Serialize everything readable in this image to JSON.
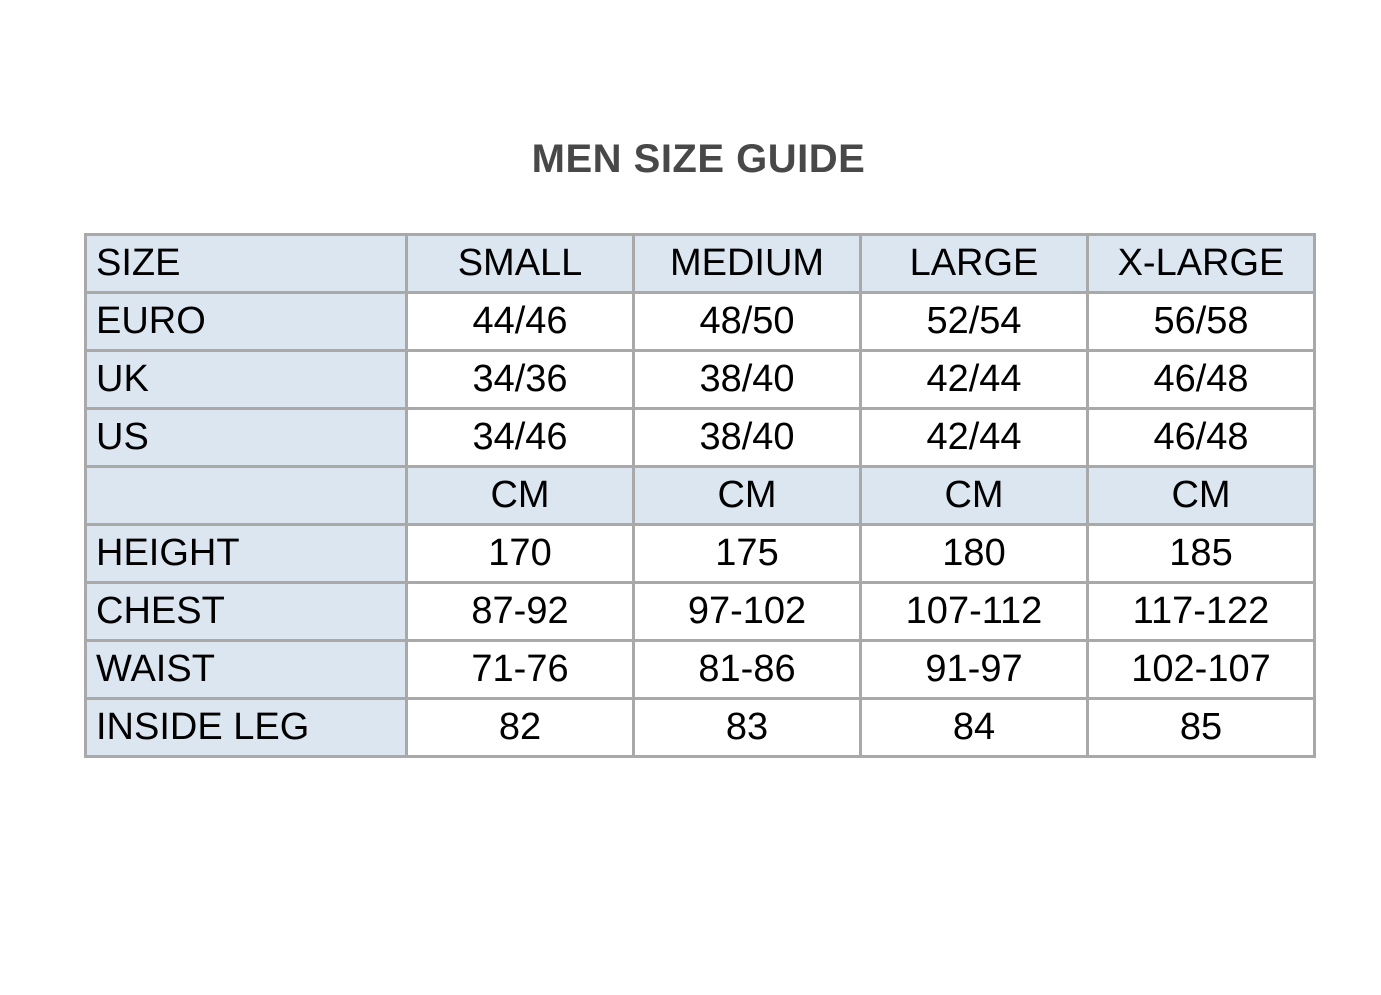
{
  "title": "MEN SIZE GUIDE",
  "colors": {
    "page_bg": "#ffffff",
    "header_bg": "#dce6f1",
    "row_label_bg": "#dce6f1",
    "cell_bg": "#ffffff",
    "border": "#a9a9a9",
    "title_text": "#484848",
    "cell_text": "#000000"
  },
  "size_table": {
    "columns": [
      "SIZE",
      "SMALL",
      "MEDIUM",
      "LARGE",
      "X-LARGE"
    ],
    "rows": [
      {
        "label": "EURO",
        "highlight": false,
        "values": [
          "44/46",
          "48/50",
          "52/54",
          "56/58"
        ]
      },
      {
        "label": "UK",
        "highlight": false,
        "values": [
          "34/36",
          "38/40",
          "42/44",
          "46/48"
        ]
      },
      {
        "label": "US",
        "highlight": false,
        "values": [
          "34/46",
          "38/40",
          "42/44",
          "46/48"
        ]
      },
      {
        "label": "",
        "highlight": true,
        "values": [
          "CM",
          "CM",
          "CM",
          "CM"
        ]
      },
      {
        "label": "HEIGHT",
        "highlight": false,
        "values": [
          "170",
          "175",
          "180",
          "185"
        ]
      },
      {
        "label": "CHEST",
        "highlight": false,
        "values": [
          "87-92",
          "97-102",
          "107-112",
          "117-122"
        ]
      },
      {
        "label": "WAIST",
        "highlight": false,
        "values": [
          "71-76",
          "81-86",
          "91-97",
          "102-107"
        ]
      },
      {
        "label": "INSIDE LEG",
        "highlight": false,
        "values": [
          "82",
          "83",
          "84",
          "85"
        ]
      }
    ]
  }
}
